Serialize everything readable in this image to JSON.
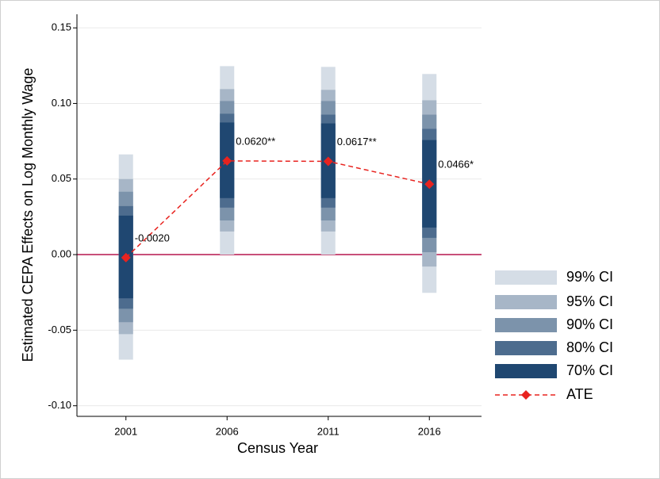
{
  "chart_data": {
    "type": "ci-plot",
    "x_label": "Census Year",
    "y_label": "Estimated CEPA Effects on Log Monthly Wage",
    "categories": [
      "2001",
      "2006",
      "2011",
      "2016"
    ],
    "ylim": [
      -0.107,
      0.159
    ],
    "yticks": [
      {
        "value": -0.1,
        "label": "-0.10"
      },
      {
        "value": -0.05,
        "label": "-0.05"
      },
      {
        "value": 0,
        "label": "0.00"
      },
      {
        "value": 0.05,
        "label": "0.05"
      },
      {
        "value": 0.1,
        "label": "0.10"
      },
      {
        "value": 0.15,
        "label": "0.15"
      }
    ],
    "grid": true,
    "reference_line": {
      "value": 0,
      "color": "#b5174e"
    },
    "intervals": [
      {
        "name": "99% CI",
        "color": "#d5dde6",
        "lower": [
          -0.0695,
          0.0,
          0.0,
          -0.0253
        ],
        "upper": [
          0.0663,
          0.1247,
          0.1242,
          0.1195
        ]
      },
      {
        "name": "95% CI",
        "color": "#a7b6c7",
        "lower": [
          -0.0526,
          0.0153,
          0.0153,
          -0.0079
        ],
        "upper": [
          0.05,
          0.1095,
          0.109,
          0.1021
        ]
      },
      {
        "name": "90% CI",
        "color": "#7c93ab",
        "lower": [
          -0.0447,
          0.0226,
          0.0226,
          0.0016
        ],
        "upper": [
          0.0416,
          0.1016,
          0.1016,
          0.0926
        ]
      },
      {
        "name": "80% CI",
        "color": "#4d6c8e",
        "lower": [
          -0.0358,
          0.0311,
          0.0311,
          0.0111
        ],
        "upper": [
          0.0321,
          0.0932,
          0.0926,
          0.0832
        ]
      },
      {
        "name": "70% CI",
        "color": "#1f4771",
        "lower": [
          -0.0289,
          0.0374,
          0.0374,
          0.0179
        ],
        "upper": [
          0.0258,
          0.0874,
          0.0868,
          0.0758
        ]
      }
    ],
    "estimate": {
      "name": "ATE",
      "color": "#e8231f",
      "values": [
        -0.002,
        0.062,
        0.0617,
        0.0466
      ],
      "value_labels": [
        "-0.0020",
        "0.0620**",
        "0.0617**",
        "0.0466*"
      ]
    }
  }
}
